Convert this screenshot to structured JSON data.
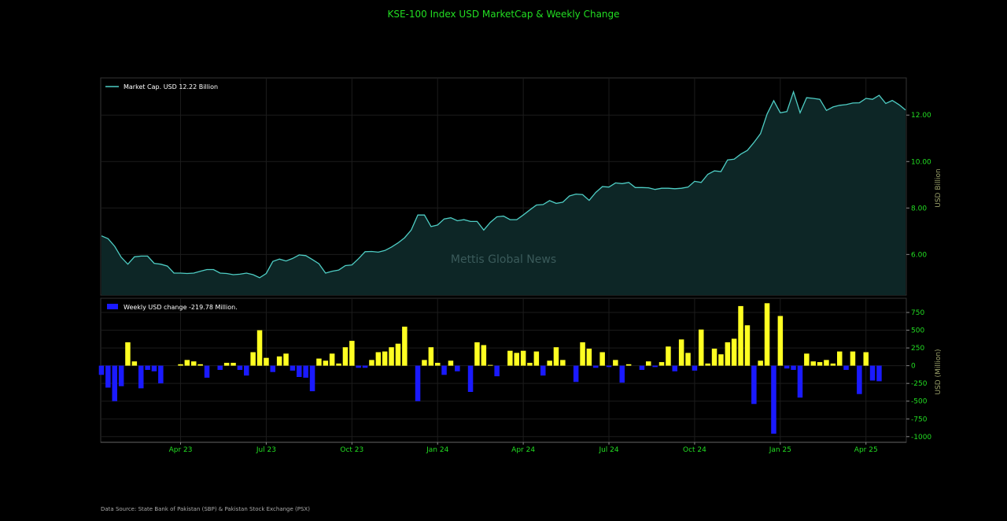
{
  "chart_data": {
    "title": "KSE-100 Index USD MarketCap & Weekly Change",
    "watermark": "Mettis Global News",
    "source": "Data Source: State Bank of Pakistan (SBP) & Pakistan Stock Exchange (PSX)",
    "x_ticks": [
      {
        "label": "Apr 23",
        "idx": 12
      },
      {
        "label": "Jul 23",
        "idx": 25
      },
      {
        "label": "Oct 23",
        "idx": 38
      },
      {
        "label": "Jan 24",
        "idx": 51
      },
      {
        "label": "Apr 24",
        "idx": 64
      },
      {
        "label": "Jul 24",
        "idx": 77
      },
      {
        "label": "Oct 24",
        "idx": 90
      },
      {
        "label": "Jan 25",
        "idx": 103
      },
      {
        "label": "Apr 25",
        "idx": 116
      }
    ],
    "top": {
      "type": "area",
      "legend": "Market Cap. USD 12.22 Billion",
      "ylabel": "USD Billion",
      "ylim": [
        4.25,
        13.6
      ],
      "yticks": [
        6.0,
        8.0,
        10.0,
        12.0
      ],
      "ytick_labels": [
        "6.00",
        "8.00",
        "10.00",
        "12.00"
      ],
      "line_color": "#4ecdc4",
      "fill_color": "#0d2626",
      "values": [
        6.8,
        6.68,
        6.35,
        5.88,
        5.58,
        5.9,
        5.93,
        5.93,
        5.62,
        5.58,
        5.5,
        5.2,
        5.2,
        5.18,
        5.2,
        5.28,
        5.35,
        5.35,
        5.2,
        5.18,
        5.13,
        5.15,
        5.2,
        5.13,
        5.0,
        5.18,
        5.7,
        5.8,
        5.72,
        5.83,
        5.98,
        5.95,
        5.78,
        5.6,
        5.2,
        5.28,
        5.33,
        5.52,
        5.55,
        5.82,
        6.12,
        6.13,
        6.1,
        6.17,
        6.32,
        6.5,
        6.72,
        7.05,
        7.7,
        7.7,
        7.2,
        7.27,
        7.53,
        7.58,
        7.45,
        7.5,
        7.42,
        7.42,
        7.05,
        7.38,
        7.62,
        7.65,
        7.5,
        7.5,
        7.7,
        7.92,
        8.13,
        8.15,
        8.32,
        8.2,
        8.25,
        8.52,
        8.6,
        8.58,
        8.33,
        8.67,
        8.92,
        8.9,
        9.08,
        9.05,
        9.1,
        8.88,
        8.88,
        8.87,
        8.8,
        8.85,
        8.85,
        8.83,
        8.85,
        8.9,
        9.15,
        9.1,
        9.45,
        9.6,
        9.57,
        10.07,
        10.1,
        10.32,
        10.48,
        10.82,
        11.2,
        12.05,
        12.62,
        12.1,
        12.15,
        13.0,
        12.1,
        12.75,
        12.72,
        12.68,
        12.2,
        12.35,
        12.42,
        12.45,
        12.52,
        12.53,
        12.72,
        12.68,
        12.85,
        12.5,
        12.63,
        12.45,
        12.22
      ]
    },
    "bottom": {
      "type": "bar",
      "legend": "Weekly USD change -219.78 Million.",
      "ylabel": "USD (Million)",
      "ylim": [
        -1080,
        950
      ],
      "yticks": [
        -1000,
        -750,
        -500,
        -250,
        0,
        250,
        500,
        750
      ],
      "ytick_labels": [
        "-1000",
        "-750",
        "-500",
        "-250",
        "0",
        "250",
        "500",
        "750"
      ],
      "pos_color": "#ffff22",
      "neg_color": "#1a1aff",
      "values": [
        -130,
        -310,
        -500,
        -290,
        330,
        60,
        -320,
        -60,
        -80,
        -250,
        0,
        0,
        20,
        80,
        60,
        20,
        -170,
        0,
        -60,
        40,
        40,
        -60,
        -140,
        190,
        500,
        110,
        -90,
        130,
        170,
        -70,
        -160,
        -170,
        -360,
        100,
        70,
        170,
        30,
        260,
        350,
        -30,
        -30,
        80,
        190,
        200,
        260,
        310,
        550,
        0,
        -500,
        80,
        260,
        40,
        -130,
        70,
        -80,
        0,
        -370,
        330,
        290,
        10,
        -150,
        0,
        210,
        180,
        210,
        40,
        200,
        -140,
        70,
        260,
        80,
        0,
        -230,
        330,
        240,
        -30,
        190,
        -20,
        80,
        -240,
        20,
        0,
        -60,
        60,
        -20,
        50,
        270,
        -80,
        370,
        180,
        -70,
        510,
        30,
        240,
        160,
        330,
        380,
        840,
        570,
        -540,
        70,
        880,
        -960,
        700,
        -40,
        -60,
        -450,
        170,
        60,
        50,
        80,
        30,
        200,
        -60,
        200,
        -400,
        190,
        -210,
        -220
      ]
    }
  }
}
